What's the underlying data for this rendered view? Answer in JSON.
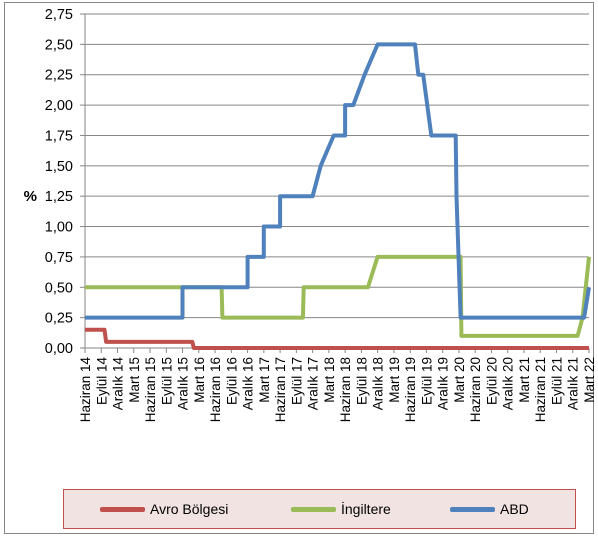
{
  "chart_data": {
    "type": "line",
    "ylabel": "%",
    "ylim": [
      0,
      2.75
    ],
    "ytick_values": [
      0,
      0.25,
      0.5,
      0.75,
      1.0,
      1.25,
      1.5,
      1.75,
      2.0,
      2.25,
      2.5,
      2.75
    ],
    "ytick_labels": [
      "0,00",
      "0,25",
      "0,50",
      "0,75",
      "1,00",
      "%1,25",
      "1,50",
      "1,75",
      "2,00",
      "2,25",
      "2,50",
      "2,75"
    ],
    "x_labels": [
      "Haziran 14",
      "Eylül 14",
      "Aralık 14",
      "Mart 15",
      "Haziran 15",
      "Eylül 15",
      "Aralık 15",
      "Mart 16",
      "Haziran 16",
      "Eylül 16",
      "Aralık 16",
      "Mart 17",
      "Haziran 17",
      "Eylül 17",
      "Aralık 17",
      "Mart 18",
      "Haziran 18",
      "Eylül 18",
      "Aralık 18",
      "Mart 19",
      "Haziran 19",
      "Eylül 19",
      "Aralık 19",
      "Mart 20",
      "Haziran 20",
      "Eylül 20",
      "Aralık 20",
      "Mart 21",
      "Haziran 21",
      "Eylül 21",
      "Aralık 21",
      "Mart 22"
    ],
    "grid": true,
    "legend_position": "bottom",
    "series": [
      {
        "name": "Avro Bölgesi",
        "color": "#c0504d",
        "points": [
          [
            0,
            0.15
          ],
          [
            1.2,
            0.15
          ],
          [
            1.3,
            0.05
          ],
          [
            6.6,
            0.05
          ],
          [
            6.7,
            0.0
          ],
          [
            31,
            0.0
          ]
        ]
      },
      {
        "name": "İngiltere",
        "color": "#9bbb59",
        "points": [
          [
            0,
            0.5
          ],
          [
            8.4,
            0.5
          ],
          [
            8.45,
            0.25
          ],
          [
            13.4,
            0.25
          ],
          [
            13.45,
            0.5
          ],
          [
            17.4,
            0.5
          ],
          [
            18.0,
            0.75
          ],
          [
            23.1,
            0.75
          ],
          [
            23.15,
            0.1
          ],
          [
            30.3,
            0.1
          ],
          [
            30.6,
            0.25
          ],
          [
            31,
            0.75
          ]
        ]
      },
      {
        "name": "ABD",
        "color": "#4f81bd",
        "points": [
          [
            0,
            0.25
          ],
          [
            6.0,
            0.25
          ],
          [
            6.0,
            0.5
          ],
          [
            10.0,
            0.5
          ],
          [
            10.0,
            0.75
          ],
          [
            11.0,
            0.75
          ],
          [
            11.0,
            1.0
          ],
          [
            12.0,
            1.0
          ],
          [
            12.0,
            1.25
          ],
          [
            14.0,
            1.25
          ],
          [
            14.5,
            1.5
          ],
          [
            15.3,
            1.75
          ],
          [
            16.0,
            1.75
          ],
          [
            16.0,
            2.0
          ],
          [
            16.5,
            2.0
          ],
          [
            17.2,
            2.25
          ],
          [
            18.0,
            2.5
          ],
          [
            20.3,
            2.5
          ],
          [
            20.5,
            2.25
          ],
          [
            20.8,
            2.25
          ],
          [
            21.3,
            1.75
          ],
          [
            22.8,
            1.75
          ],
          [
            22.85,
            1.25
          ],
          [
            23.1,
            0.25
          ],
          [
            30.7,
            0.25
          ],
          [
            31.0,
            0.5
          ]
        ]
      }
    ]
  }
}
